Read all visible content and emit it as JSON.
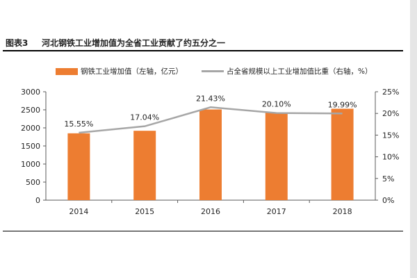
{
  "figure": {
    "label": "图表3",
    "title": "河北钢铁工业增加值为全省工业贡献了约五分之一"
  },
  "colors": {
    "bar": "#ed7d31",
    "line": "#a6a6a6",
    "axis": "#595959"
  },
  "chart_data": {
    "type": "bar",
    "categories": [
      "2014",
      "2015",
      "2016",
      "2017",
      "2018"
    ],
    "series": [
      {
        "name": "钢铁工业增加值（左轴，亿元）",
        "type": "bar",
        "axis": "left",
        "values": [
          1850,
          1920,
          2510,
          2420,
          2530
        ]
      },
      {
        "name": "占全省规模以上工业增加值比重（右轴，%）",
        "type": "line",
        "axis": "right",
        "values": [
          15.55,
          17.04,
          21.43,
          20.1,
          19.99
        ],
        "labels": [
          "15.55%",
          "17.04%",
          "21.43%",
          "20.10%",
          "19.99%"
        ]
      }
    ],
    "ylim_left": [
      0,
      3000
    ],
    "yticks_left": [
      "0",
      "500",
      "1000",
      "1500",
      "2000",
      "2500",
      "3000"
    ],
    "ylim_right": [
      0,
      25
    ],
    "yticks_right": [
      "0%",
      "5%",
      "10%",
      "15%",
      "20%",
      "25%"
    ],
    "legend_position": "top",
    "grid": false
  }
}
